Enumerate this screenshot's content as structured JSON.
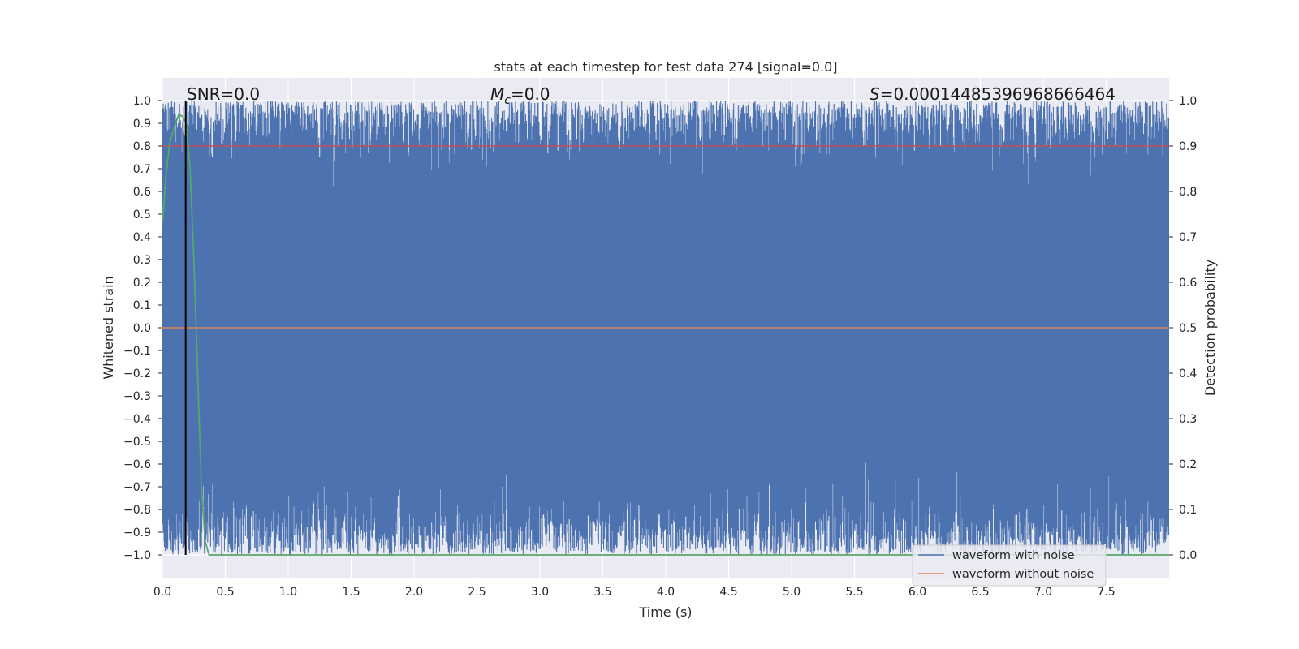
{
  "chart_data": {
    "type": "line",
    "title": "stats at each timestep for test data 274 [signal=0.0]",
    "xlabel": "Time (s)",
    "ylabel": "Whitened strain",
    "y2label": "Detection probability",
    "xlim": [
      0.0,
      8.0
    ],
    "ylim": [
      -1.1,
      1.1
    ],
    "y2lim": [
      -0.05,
      1.05
    ],
    "xticks": [
      "0.0",
      "0.5",
      "1.0",
      "1.5",
      "2.0",
      "2.5",
      "3.0",
      "3.5",
      "4.0",
      "4.5",
      "5.0",
      "5.5",
      "6.0",
      "6.5",
      "7.0",
      "7.5"
    ],
    "yticks": [
      "1.0",
      "0.9",
      "0.8",
      "0.7",
      "0.6",
      "0.5",
      "0.4",
      "0.3",
      "0.2",
      "0.1",
      "0.0",
      "−0.1",
      "−0.2",
      "−0.3",
      "−0.4",
      "−0.5",
      "−0.6",
      "−0.7",
      "−0.8",
      "−0.9",
      "−1.0"
    ],
    "y2ticks": [
      "1.0",
      "0.9",
      "0.8",
      "0.7",
      "0.6",
      "0.5",
      "0.4",
      "0.3",
      "0.2",
      "0.1",
      "0.0"
    ],
    "grid": true,
    "legend_position": "lower-right",
    "annotations": {
      "snr": "SNR=0.0",
      "mc": "=0.0",
      "mc_symbol": "M",
      "mc_sub": "c",
      "s_symbol": "S",
      "s": "=0.00014485396968666464"
    },
    "series": [
      {
        "name": "waveform with noise",
        "color": "#4c72b0",
        "axis": "left",
        "description_values": "dense noise filling most of range [-1, 1]"
      },
      {
        "name": "waveform without noise",
        "color": "#dd8452",
        "axis": "left",
        "values_constant": 0.0
      },
      {
        "name": "",
        "color": "#c44e52",
        "axis": "right",
        "values_constant": 0.9
      },
      {
        "name": "",
        "color": "#55a868",
        "axis": "right",
        "x": [
          0.0,
          0.03,
          0.06,
          0.1,
          0.13,
          0.16,
          0.19,
          0.22,
          0.25,
          0.28,
          0.31,
          0.34,
          0.37,
          0.4,
          8.0
        ],
        "values": [
          0.73,
          0.84,
          0.91,
          0.945,
          0.97,
          0.965,
          0.95,
          0.85,
          0.65,
          0.4,
          0.15,
          0.03,
          0.0,
          0.0,
          0.0
        ]
      }
    ],
    "vline_x": 0.185,
    "vline_color": "#000000"
  }
}
